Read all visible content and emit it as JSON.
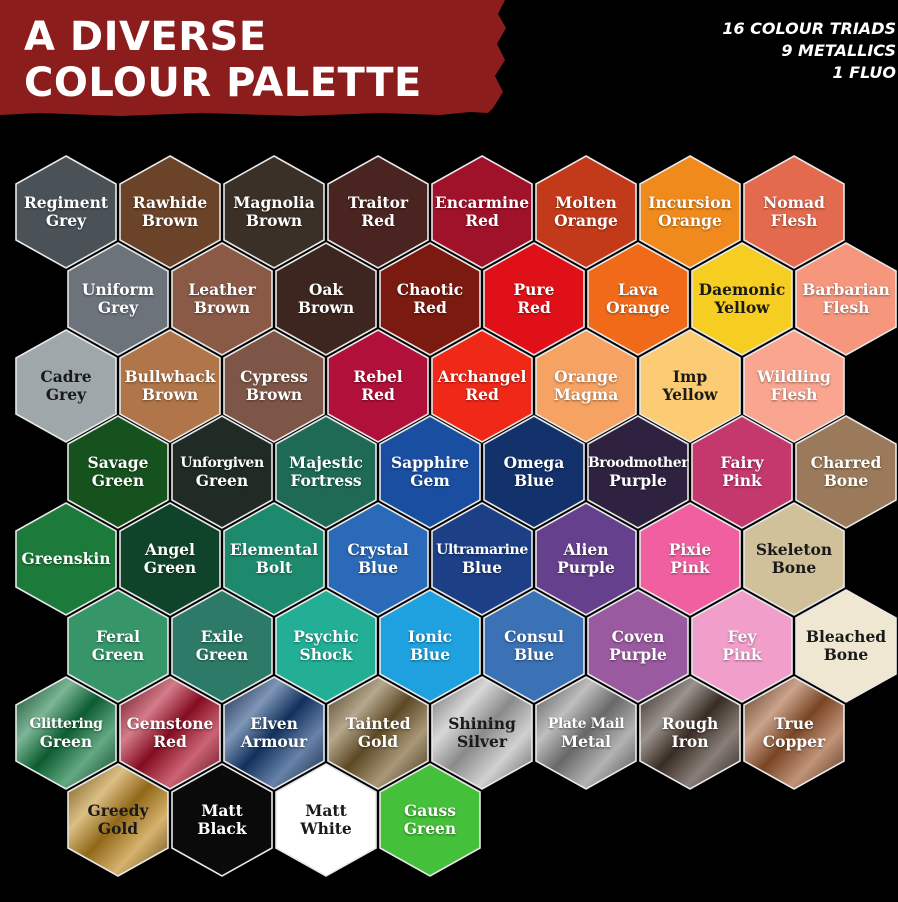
{
  "header": {
    "title_line1": "A DIVERSE",
    "title_line2": "COLOUR PALETTE",
    "banner_color": "#8b1d1d",
    "stats": [
      "16 COLOUR TRIADS",
      "9 METALLICS",
      "1 FLUO"
    ]
  },
  "rows": [
    {
      "offset": false,
      "colors": [
        {
          "name": "Regiment Grey",
          "color": "#4a5258"
        },
        {
          "name": "Rawhide Brown",
          "color": "#6b4329"
        },
        {
          "name": "Magnolia Brown",
          "color": "#3a3028"
        },
        {
          "name": "Traitor Red",
          "color": "#4a2420"
        },
        {
          "name": "Encarmine Red",
          "color": "#a0122a"
        },
        {
          "name": "Molten Orange",
          "color": "#c23a1a"
        },
        {
          "name": "Incursion Orange",
          "color": "#f08a1c"
        },
        {
          "name": "Nomad Flesh",
          "color": "#e36a4e"
        }
      ]
    },
    {
      "offset": true,
      "colors": [
        {
          "name": "Uniform Grey",
          "color": "#6c737b"
        },
        {
          "name": "Leather Brown",
          "color": "#8a5a47"
        },
        {
          "name": "Oak Brown",
          "color": "#3d2620"
        },
        {
          "name": "Chaotic Red",
          "color": "#7a1a10"
        },
        {
          "name": "Pure Red",
          "color": "#e01018"
        },
        {
          "name": "Lava Orange",
          "color": "#f06a1a"
        },
        {
          "name": "Daemonic Yellow",
          "color": "#f6cd21",
          "dark_text": true
        },
        {
          "name": "Barbarian Flesh",
          "color": "#f5967d"
        }
      ]
    },
    {
      "offset": false,
      "colors": [
        {
          "name": "Cadre Grey",
          "color": "#9ea7aa",
          "dark_text": true
        },
        {
          "name": "Bullwhack Brown",
          "color": "#b07548"
        },
        {
          "name": "Cypress Brown",
          "color": "#7e5648"
        },
        {
          "name": "Rebel Red",
          "color": "#b0103a"
        },
        {
          "name": "Archangel Red",
          "color": "#f02818"
        },
        {
          "name": "Orange Magma",
          "color": "#f5a263"
        },
        {
          "name": "Imp Yellow",
          "color": "#fbcc73",
          "dark_text": true
        },
        {
          "name": "Wildling Flesh",
          "color": "#f9a58f"
        }
      ]
    },
    {
      "offset": true,
      "colors": [
        {
          "name": "Savage Green",
          "color": "#16521e"
        },
        {
          "name": "Unforgiven Green",
          "color": "#1f2b24"
        },
        {
          "name": "Majestic Fortress",
          "color": "#1e6a55"
        },
        {
          "name": "Sapphire Gem",
          "color": "#1a4ea0"
        },
        {
          "name": "Omega Blue",
          "color": "#13316b"
        },
        {
          "name": "Broodmother Purple",
          "color": "#2e2240"
        },
        {
          "name": "Fairy Pink",
          "color": "#c4386e"
        },
        {
          "name": "Charred Bone",
          "color": "#9a7a5a"
        }
      ]
    },
    {
      "offset": false,
      "colors": [
        {
          "name": "Greenskin",
          "color": "#1c7a3a"
        },
        {
          "name": "Angel Green",
          "color": "#10442a"
        },
        {
          "name": "Elemental Bolt",
          "color": "#1d8a6e"
        },
        {
          "name": "Crystal Blue",
          "color": "#2a6ab8"
        },
        {
          "name": "Ultramarine Blue",
          "color": "#1c3f86"
        },
        {
          "name": "Alien Purple",
          "color": "#65408c"
        },
        {
          "name": "Pixie Pink",
          "color": "#f060a0"
        },
        {
          "name": "Skeleton Bone",
          "color": "#d0c19b",
          "dark_text": true
        }
      ]
    },
    {
      "offset": true,
      "colors": [
        {
          "name": "Feral Green",
          "color": "#37956a"
        },
        {
          "name": "Exile Green",
          "color": "#2e7a68"
        },
        {
          "name": "Psychic Shock",
          "color": "#23ae96"
        },
        {
          "name": "Ionic Blue",
          "color": "#1ea1de"
        },
        {
          "name": "Consul Blue",
          "color": "#3b71b5"
        },
        {
          "name": "Coven Purple",
          "color": "#9a5aa0"
        },
        {
          "name": "Fey Pink",
          "color": "#f19ecb"
        },
        {
          "name": "Bleached Bone",
          "color": "#efe7d2",
          "dark_text": true
        }
      ]
    },
    {
      "offset": false,
      "colors": [
        {
          "name": "Glittering Green",
          "color": "#107a40",
          "metallic": true
        },
        {
          "name": "Gemstone Red",
          "color": "#b0102a",
          "metallic": true
        },
        {
          "name": "Elven Armour",
          "color": "#17407a",
          "metallic": true
        },
        {
          "name": "Tainted Gold",
          "color": "#7a6030",
          "metallic": true
        },
        {
          "name": "Shining Silver",
          "color": "#b8b8b8",
          "metallic": true,
          "dark_text": true
        },
        {
          "name": "Plate Mail Metal",
          "color": "#8a8a8a",
          "metallic": true
        },
        {
          "name": "Rough Iron",
          "color": "#4a3a30",
          "metallic": true
        },
        {
          "name": "True Copper",
          "color": "#a05a30",
          "metallic": true
        }
      ]
    },
    {
      "offset": true,
      "colors": [
        {
          "name": "Greedy Gold",
          "color": "#c08a20",
          "metallic": true,
          "dark_text": true
        },
        {
          "name": "Matt Black",
          "color": "#0a0a0a"
        },
        {
          "name": "Matt White",
          "color": "#ffffff",
          "dark_text": true
        },
        {
          "name": "Gauss Green",
          "color": "#44c03a"
        }
      ]
    }
  ]
}
